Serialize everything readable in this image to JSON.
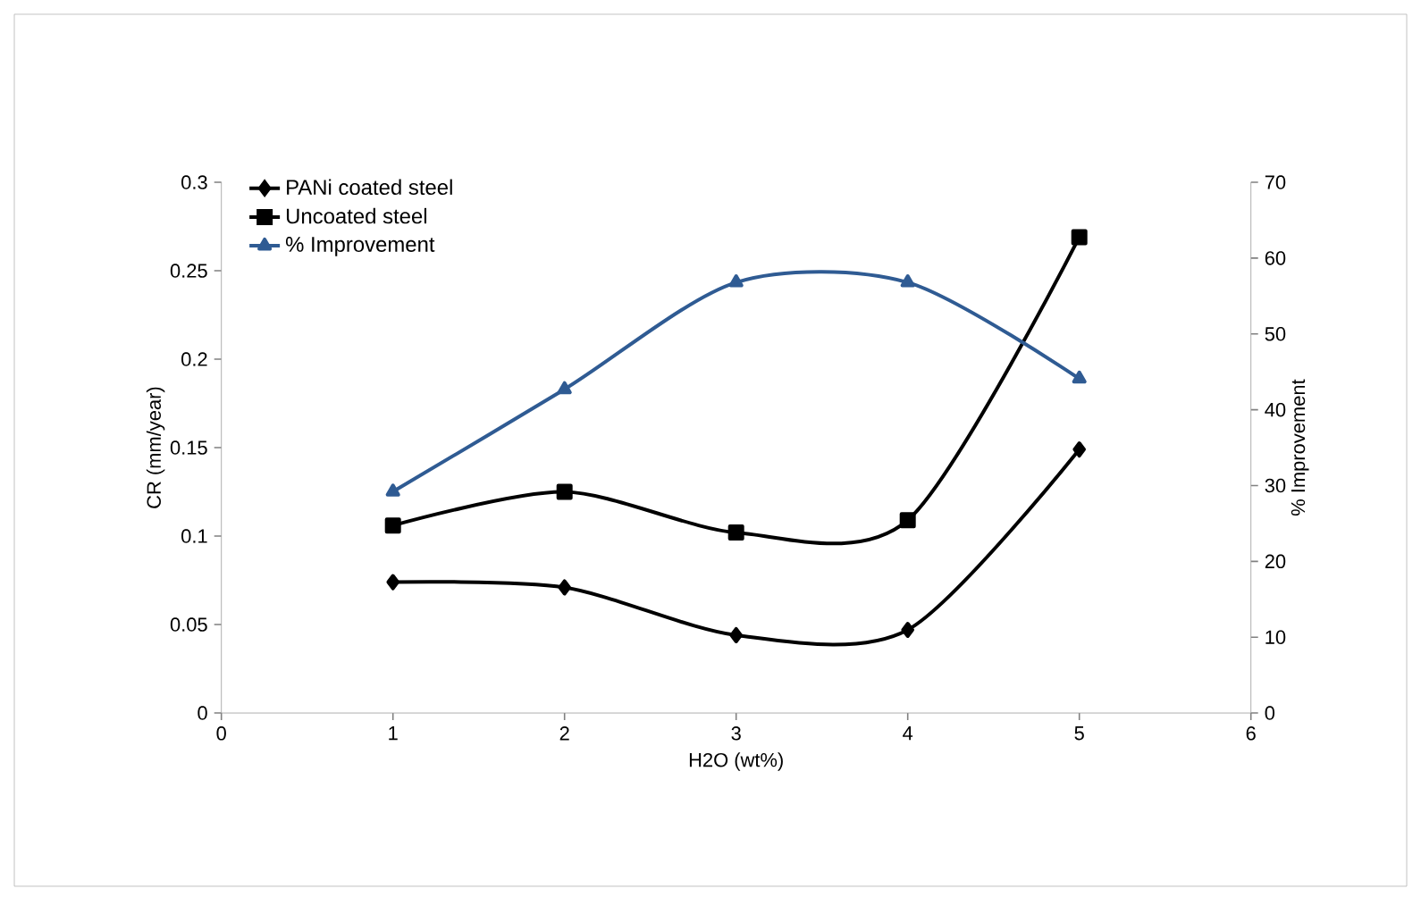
{
  "chart_data": {
    "type": "line",
    "xlabel": "H2O (wt%)",
    "ylabel": "CR (mm/year)",
    "y2label": "% Improvement",
    "x": [
      1,
      2,
      3,
      4,
      5
    ],
    "xlim": [
      0,
      6
    ],
    "xticks": [
      0,
      1,
      2,
      3,
      4,
      5,
      6
    ],
    "ylim": [
      0,
      0.3
    ],
    "yticks": [
      0,
      0.05,
      0.1,
      0.15,
      0.2,
      0.25,
      0.3
    ],
    "y2lim": [
      0,
      70
    ],
    "y2ticks": [
      0,
      10,
      20,
      30,
      40,
      50,
      60,
      70
    ],
    "legend": "top left",
    "grid": false,
    "series": [
      {
        "name": "PANi coated steel",
        "color": "#000000",
        "marker": "diamond",
        "values": [
          0.074,
          0.071,
          0.044,
          0.047,
          0.149
        ]
      },
      {
        "name": "Uncoated steel",
        "color": "#000000",
        "marker": "square",
        "values": [
          0.106,
          0.125,
          0.102,
          0.109,
          0.269
        ]
      },
      {
        "name": "% Improvement",
        "color": "#2f5b93",
        "marker": "triangle",
        "axis": "y2",
        "values": [
          29.2,
          42.7,
          56.8,
          56.8,
          44.1
        ]
      }
    ]
  }
}
